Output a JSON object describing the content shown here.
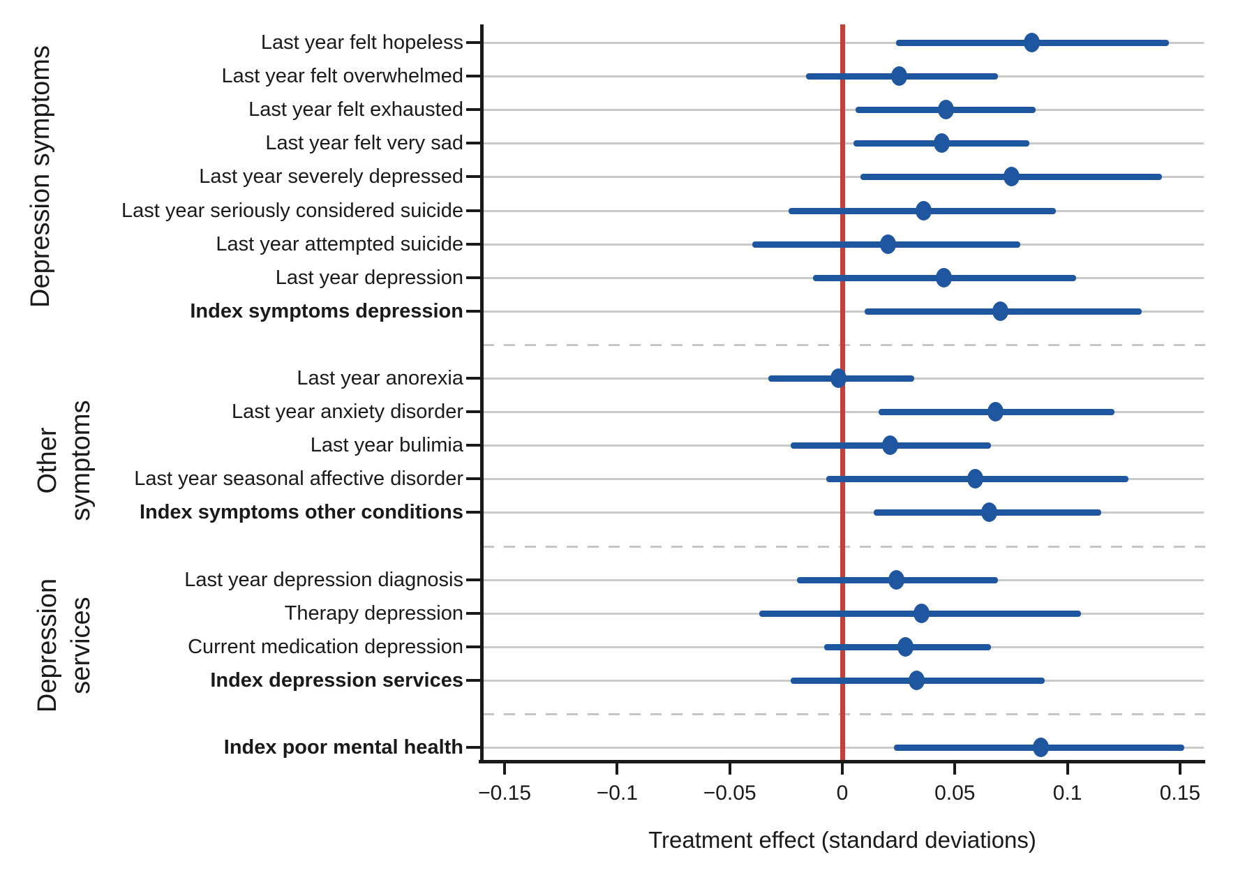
{
  "page": {
    "background": "#ffffff"
  },
  "chart_data": {
    "type": "scatter",
    "subtype": "forest-coefficient-plot",
    "title": "",
    "xlabel": "Treatment effect (standard deviations)",
    "ylabel": "",
    "xlim": [
      -0.16,
      0.161
    ],
    "xticks": [
      -0.15,
      -0.1,
      -0.05,
      0,
      0.05,
      0.1,
      0.15
    ],
    "xtick_labels": [
      "−0.15",
      "−0.1",
      "−0.05",
      "0",
      "0.05",
      "0.1",
      "0.15"
    ],
    "zero_line_x": 0,
    "grid": "one horizontal light-gray gridline per outcome row; dashed gray separators between groups",
    "legend_position": "none",
    "marker_color": "#1f56a0",
    "ci_color": "#1f56a0",
    "zero_line_color": "#c5403a",
    "gridline_color": "#c9c9c9",
    "separator_color": "#c6c6c6",
    "axis_color": "#1a1a1a",
    "groups": [
      {
        "name": "Depression symptoms",
        "name_lines": [
          "Depression symptoms"
        ],
        "items": [
          {
            "label": "Last year felt hopeless",
            "bold": false,
            "est": 0.084,
            "ci_low": 0.024,
            "ci_high": 0.145
          },
          {
            "label": "Last year felt overwhelmed",
            "bold": false,
            "est": 0.025,
            "ci_low": -0.016,
            "ci_high": 0.069
          },
          {
            "label": "Last year felt exhausted",
            "bold": false,
            "est": 0.046,
            "ci_low": 0.006,
            "ci_high": 0.086
          },
          {
            "label": "Last year felt very sad",
            "bold": false,
            "est": 0.044,
            "ci_low": 0.005,
            "ci_high": 0.083
          },
          {
            "label": "Last year severely depressed",
            "bold": false,
            "est": 0.075,
            "ci_low": 0.008,
            "ci_high": 0.142
          },
          {
            "label": "Last year seriously considered suicide",
            "bold": false,
            "est": 0.036,
            "ci_low": -0.024,
            "ci_high": 0.095
          },
          {
            "label": "Last year attempted suicide",
            "bold": false,
            "est": 0.02,
            "ci_low": -0.04,
            "ci_high": 0.079
          },
          {
            "label": "Last year depression",
            "bold": false,
            "est": 0.045,
            "ci_low": -0.013,
            "ci_high": 0.104
          },
          {
            "label": "Index symptoms depression",
            "bold": true,
            "est": 0.07,
            "ci_low": 0.01,
            "ci_high": 0.133
          }
        ]
      },
      {
        "name": "Other symptoms",
        "name_lines": [
          "Other",
          "symptoms"
        ],
        "items": [
          {
            "label": "Last year anorexia",
            "bold": false,
            "est": -0.002,
            "ci_low": -0.033,
            "ci_high": 0.032
          },
          {
            "label": "Last year anxiety disorder",
            "bold": false,
            "est": 0.068,
            "ci_low": 0.016,
            "ci_high": 0.121
          },
          {
            "label": "Last year bulimia",
            "bold": false,
            "est": 0.021,
            "ci_low": -0.023,
            "ci_high": 0.066
          },
          {
            "label": "Last year seasonal affective disorder",
            "bold": false,
            "est": 0.059,
            "ci_low": -0.007,
            "ci_high": 0.127
          },
          {
            "label": "Index symptoms other conditions",
            "bold": true,
            "est": 0.065,
            "ci_low": 0.014,
            "ci_high": 0.115
          }
        ]
      },
      {
        "name": "Depression services",
        "name_lines": [
          "Depression",
          "services"
        ],
        "items": [
          {
            "label": "Last year depression diagnosis",
            "bold": false,
            "est": 0.024,
            "ci_low": -0.02,
            "ci_high": 0.069
          },
          {
            "label": "Therapy depression",
            "bold": false,
            "est": 0.035,
            "ci_low": -0.037,
            "ci_high": 0.106
          },
          {
            "label": "Current medication depression",
            "bold": false,
            "est": 0.028,
            "ci_low": -0.008,
            "ci_high": 0.066
          },
          {
            "label": "Index depression services",
            "bold": true,
            "est": 0.033,
            "ci_low": -0.023,
            "ci_high": 0.09
          }
        ]
      },
      {
        "name": "",
        "name_lines": [],
        "items": [
          {
            "label": "Index poor mental health",
            "bold": true,
            "est": 0.088,
            "ci_low": 0.023,
            "ci_high": 0.152
          }
        ]
      }
    ]
  }
}
